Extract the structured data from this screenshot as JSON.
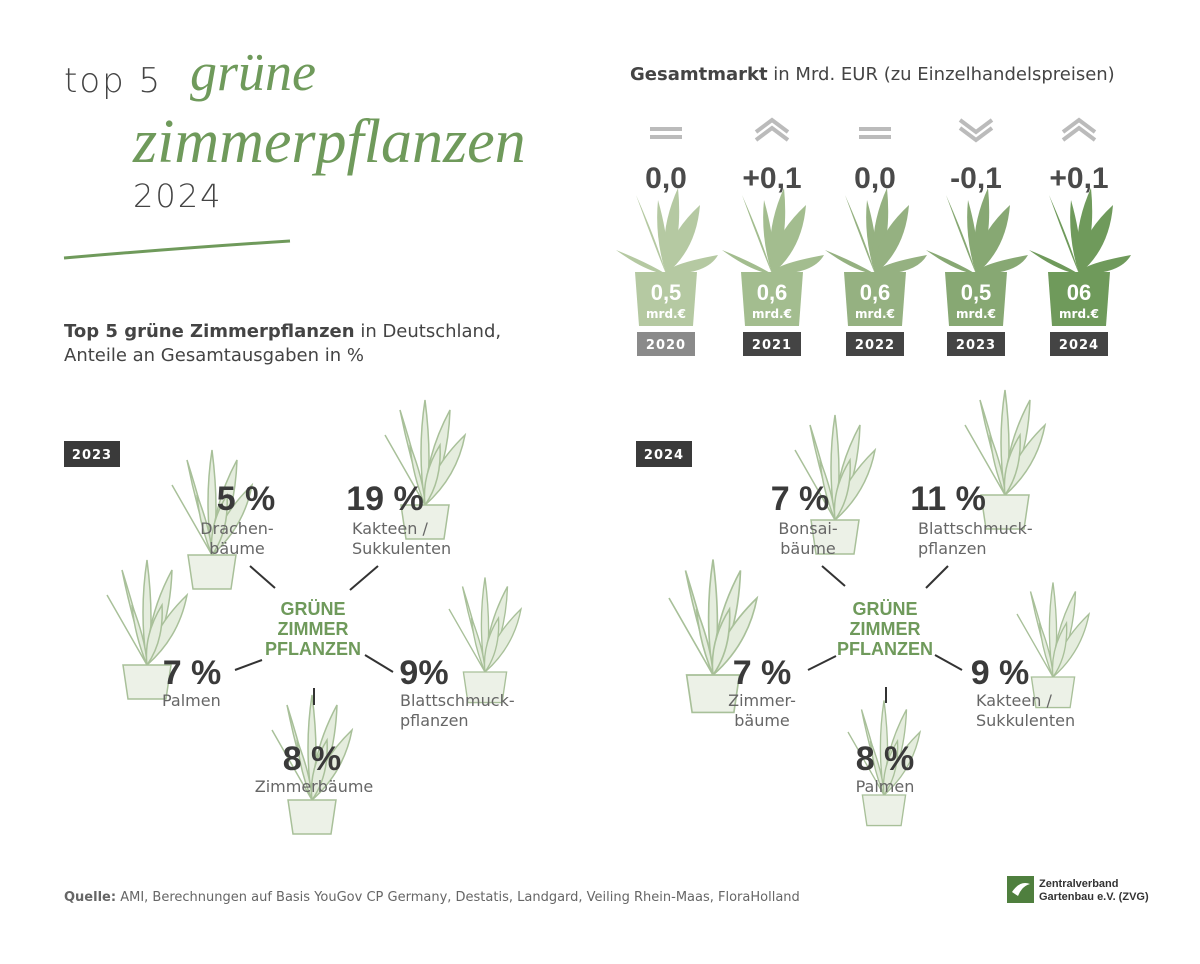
{
  "header": {
    "pre": "top 5",
    "script_line1": "grüne",
    "script_line2": "zimmerpflanzen",
    "year": "2024"
  },
  "market": {
    "title_bold": "Gesamtmarkt",
    "title_rest": "in Mrd. EUR (zu Einzelhandelspreisen)",
    "unit": "mrd.€",
    "years": [
      {
        "year": "2020",
        "value": "0,5",
        "change": "0,0",
        "trend": "flat"
      },
      {
        "year": "2021",
        "value": "0,6",
        "change": "+0,1",
        "trend": "up"
      },
      {
        "year": "2022",
        "value": "0,6",
        "change": "0,0",
        "trend": "flat"
      },
      {
        "year": "2023",
        "value": "0,5",
        "change": "-0,1",
        "trend": "down"
      },
      {
        "year": "2024",
        "value": "06",
        "change": "+0,1",
        "trend": "up"
      }
    ]
  },
  "subtitle": {
    "bold": "Top 5 grüne Zimmerpflanzen",
    "rest": "in Deutschland,",
    "line2": "Anteile an Gesamtausgaben in %"
  },
  "center_label": [
    "GRÜNE",
    "ZIMMER",
    "PFLANZEN"
  ],
  "panels": [
    {
      "year": "2023",
      "items": [
        {
          "share": "5 %",
          "label": [
            "Drachen-",
            "bäume"
          ]
        },
        {
          "share": "19 %",
          "label": [
            "Kakteen /",
            "Sukkulenten"
          ]
        },
        {
          "share": "7 %",
          "label": [
            "Palmen"
          ]
        },
        {
          "share": "9%",
          "label": [
            "Blattschmuck-",
            "pflanzen"
          ]
        },
        {
          "share": "8 %",
          "label": [
            "Zimmerbäume"
          ]
        }
      ]
    },
    {
      "year": "2024",
      "items": [
        {
          "share": "7 %",
          "label": [
            "Bonsai-",
            "bäume"
          ]
        },
        {
          "share": "11 %",
          "label": [
            "Blattschmuck-",
            "pflanzen"
          ]
        },
        {
          "share": "7 %",
          "label": [
            "Zimmer-",
            "bäume"
          ]
        },
        {
          "share": "9 %",
          "label": [
            "Kakteen /",
            "Sukkulenten"
          ]
        },
        {
          "share": "8 %",
          "label": [
            "Palmen"
          ]
        }
      ]
    }
  ],
  "source": {
    "label": "Quelle:",
    "text": "AMI, Berechnungen auf Basis YouGov CP Germany, Destatis, Landgard, Veiling Rhein-Maas, FloraHolland"
  },
  "logo": [
    "Zentralverband",
    "Gartenbau e.V. (ZVG)"
  ]
}
